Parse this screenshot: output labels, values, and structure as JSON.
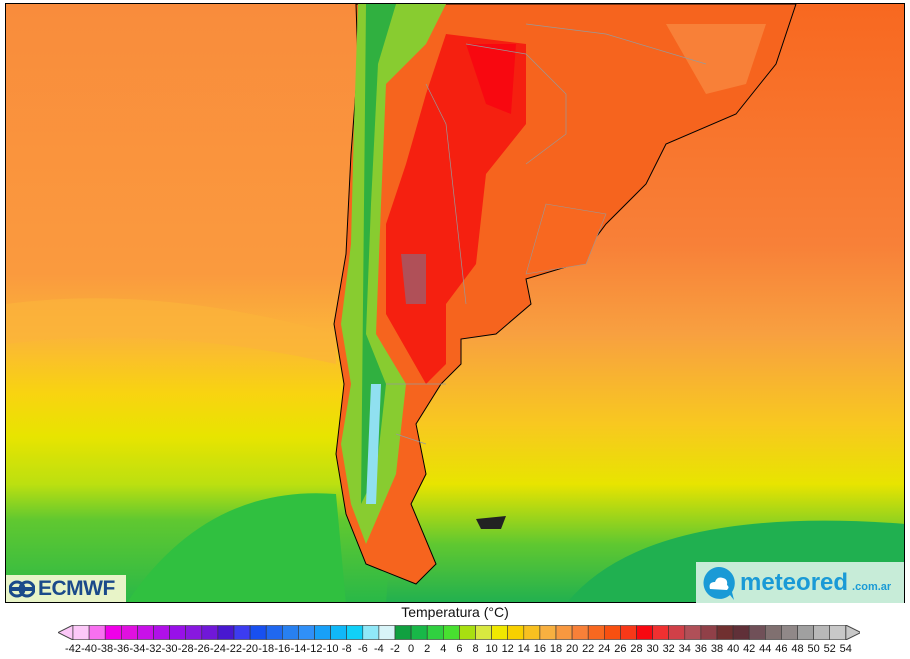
{
  "map": {
    "variable": "Temperatura (°C)"
  },
  "logos": {
    "left": "ECMWF",
    "right_main": "meteored",
    "right_domain": ".com.ar"
  },
  "legend": {
    "title": "Temperatura (°C)",
    "labels": [
      "-42",
      "-40",
      "-38",
      "-36",
      "-34",
      "-32",
      "-30",
      "-28",
      "-26",
      "-24",
      "-22",
      "-20",
      "-18",
      "-16",
      "-14",
      "-12",
      "-10",
      "-8",
      "-6",
      "-4",
      "-2",
      "0",
      "2",
      "4",
      "6",
      "8",
      "10",
      "12",
      "14",
      "16",
      "18",
      "20",
      "22",
      "24",
      "26",
      "28",
      "30",
      "32",
      "34",
      "36",
      "38",
      "40",
      "42",
      "44",
      "46",
      "48",
      "50",
      "52",
      "54"
    ],
    "colors": [
      "#fcc8f8",
      "#f870f0",
      "#f000e8",
      "#e010e0",
      "#c810e8",
      "#b010e8",
      "#9810e8",
      "#8818e0",
      "#7018d8",
      "#4818d0",
      "#3c3cf0",
      "#1850f0",
      "#2068f0",
      "#2880f0",
      "#3090f8",
      "#18a0f8",
      "#10b8f8",
      "#10d0f8",
      "#90e8f8",
      "#d8f4f8",
      "#10a040",
      "#18b848",
      "#30d040",
      "#48e030",
      "#a8e010",
      "#d8e840",
      "#f0e800",
      "#f8d000",
      "#f8c020",
      "#f8b040",
      "#f89840",
      "#f88038",
      "#f86820",
      "#f85010",
      "#f83818",
      "#f80810",
      "#f03030",
      "#d04048",
      "#b05058",
      "#904048",
      "#703030",
      "#603038",
      "#705058",
      "#807070",
      "#908888",
      "#a0a0a0",
      "#b8b8b8",
      "#c8c8c8"
    ]
  }
}
